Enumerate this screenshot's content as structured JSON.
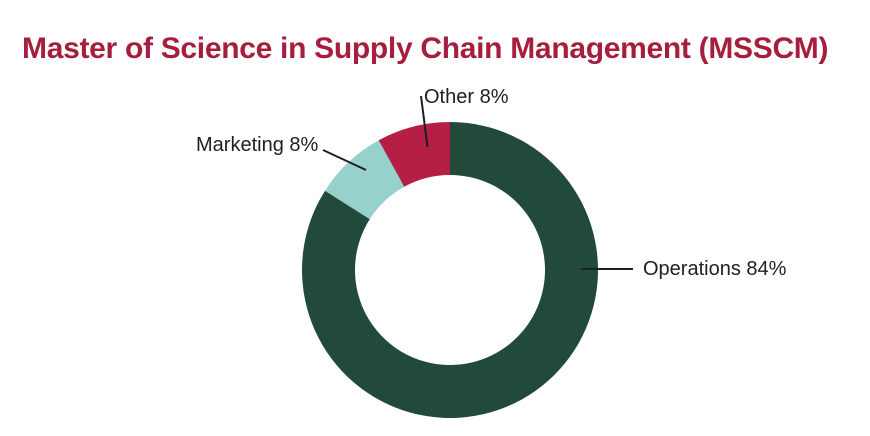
{
  "page": {
    "title": "Master of Science in Supply Chain Management (MSSCM)"
  },
  "colors": {
    "title": "#A61E3E",
    "label_text": "#1F1F1F",
    "callout_line": "#1F1F1F",
    "background": "#FFFFFF",
    "operations_green": "#214A3B",
    "marketing_teal": "#96D1CC",
    "other_crimson": "#B51F46"
  },
  "chart_data": {
    "type": "pie",
    "subtype": "donut",
    "title": "Master of Science in Supply Chain Management (MSSCM)",
    "categories": [
      "Operations",
      "Marketing",
      "Other"
    ],
    "values": [
      84,
      8,
      8
    ],
    "unit": "percent",
    "colors": [
      "#214A3B",
      "#96D1CC",
      "#B51F46"
    ],
    "slice_labels": [
      "Operations 84%",
      "Marketing 8%",
      "Other 8%"
    ],
    "start_angle_deg": 0,
    "direction": "clockwise",
    "inner_radius_ratio": 0.64,
    "legend_position": "none",
    "label_style": "external-callout",
    "hole_fill": "#FFFFFF"
  }
}
